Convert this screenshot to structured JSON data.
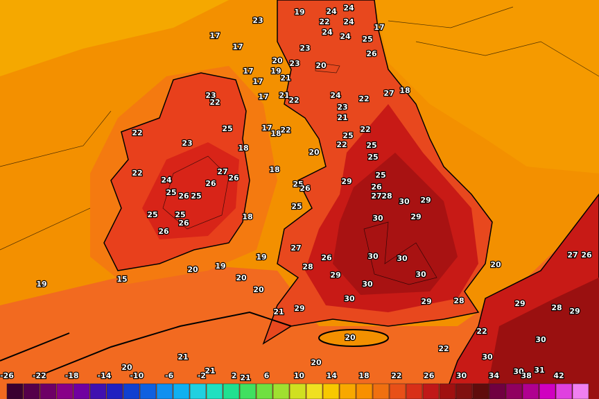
{
  "map": {
    "labels": [
      17,
      19,
      24,
      24,
      22,
      24,
      17,
      23,
      24,
      24,
      25,
      17,
      23,
      23,
      26,
      20,
      20,
      17,
      19,
      21,
      17,
      17,
      21,
      22,
      24,
      27,
      18,
      22,
      23,
      21,
      23,
      22,
      25,
      17,
      18,
      22,
      22,
      23,
      25,
      22,
      22,
      25,
      18,
      20,
      25,
      27,
      26,
      22,
      24,
      26,
      18,
      25,
      29,
      25,
      26,
      26,
      27,
      28,
      30,
      29,
      25,
      26,
      25,
      25,
      25,
      25,
      26,
      18,
      30,
      29,
      26,
      27,
      26,
      30,
      30,
      28,
      29,
      20,
      19,
      19,
      20,
      15,
      20,
      19,
      30,
      30,
      20,
      30,
      29,
      28,
      29,
      21,
      29,
      28,
      29,
      27,
      26,
      20,
      30,
      22,
      22,
      21,
      20,
      20,
      30,
      31,
      21,
      21,
      30
    ]
  },
  "legend": {
    "ticks": [
      -26,
      -22,
      -18,
      -14,
      -10,
      -6,
      -2,
      2,
      6,
      10,
      14,
      18,
      22,
      26,
      30,
      34,
      38,
      42
    ]
  }
}
